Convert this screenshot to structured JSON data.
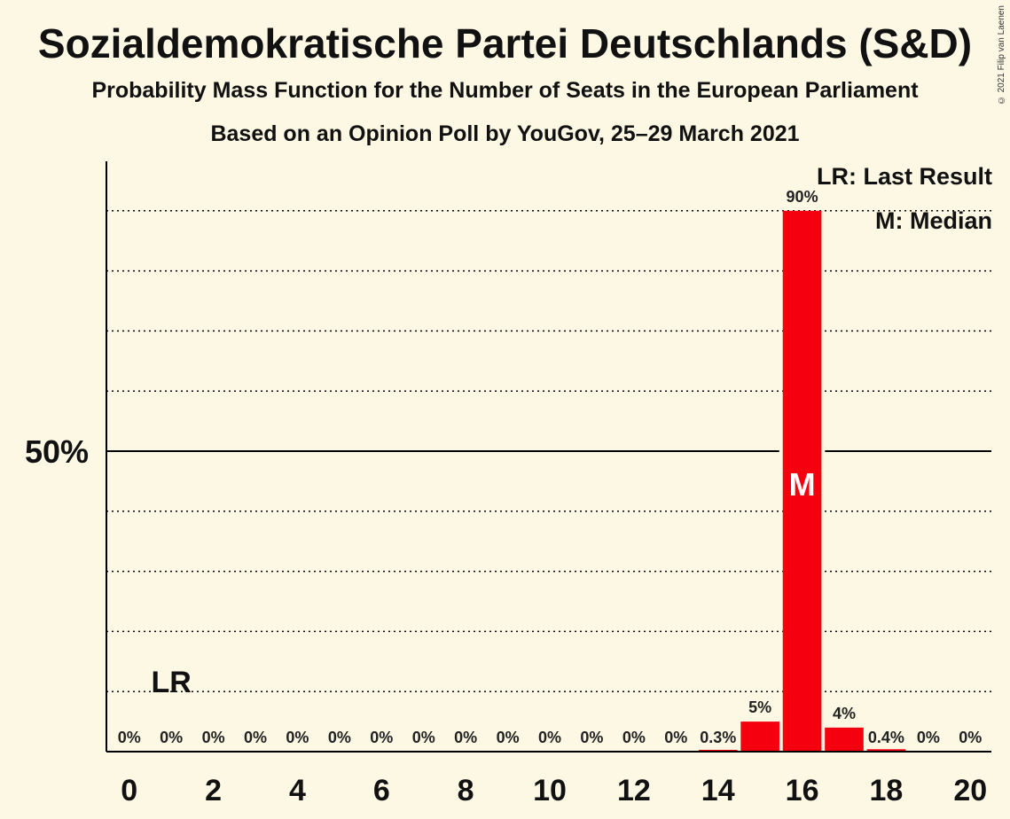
{
  "header": {
    "title": "Sozialdemokratische Partei Deutschlands (S&D)",
    "subtitle": "Probability Mass Function for the Number of Seats in the European Parliament",
    "source": "Based on an Opinion Poll by YouGov, 25–29 March 2021",
    "copyright": "© 2021 Filip van Laenen"
  },
  "legend": {
    "last_result": "LR: Last Result",
    "median": "M: Median"
  },
  "colors": {
    "bar": "#f5000f",
    "background": "#fdf8e4",
    "axis": "#000000"
  },
  "chart_data": {
    "type": "bar",
    "x": [
      0,
      1,
      2,
      3,
      4,
      5,
      6,
      7,
      8,
      9,
      10,
      11,
      12,
      13,
      14,
      15,
      16,
      17,
      18,
      19,
      20
    ],
    "values": [
      0,
      0,
      0,
      0,
      0,
      0,
      0,
      0,
      0,
      0,
      0,
      0,
      0,
      0,
      0.3,
      5,
      90,
      4,
      0.4,
      0,
      0
    ],
    "labels": [
      "0%",
      "0%",
      "0%",
      "0%",
      "0%",
      "0%",
      "0%",
      "0%",
      "0%",
      "0%",
      "0%",
      "0%",
      "0%",
      "0%",
      "0.3%",
      "5%",
      "90%",
      "4%",
      "0.4%",
      "0%",
      "0%"
    ],
    "x_ticks": [
      0,
      2,
      4,
      6,
      8,
      10,
      12,
      14,
      16,
      18,
      20
    ],
    "y_ticks": [
      {
        "value": 50,
        "label": "50%"
      }
    ],
    "ylim": [
      0,
      100
    ],
    "gridlines": [
      10,
      20,
      30,
      40,
      50,
      60,
      70,
      80,
      90
    ],
    "last_result": {
      "x": 1,
      "label": "LR"
    },
    "median": {
      "x": 16,
      "label": "M"
    }
  }
}
